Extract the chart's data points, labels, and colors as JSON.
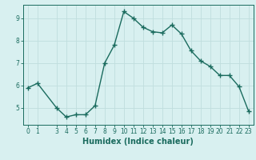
{
  "x": [
    0,
    1,
    3,
    4,
    5,
    6,
    7,
    8,
    9,
    10,
    11,
    12,
    13,
    14,
    15,
    16,
    17,
    18,
    19,
    20,
    21,
    22,
    23
  ],
  "y": [
    5.9,
    6.1,
    5.0,
    4.6,
    4.7,
    4.7,
    5.1,
    7.0,
    7.8,
    9.3,
    9.0,
    8.6,
    8.4,
    8.35,
    8.7,
    8.3,
    7.55,
    7.1,
    6.85,
    6.45,
    6.45,
    5.95,
    4.85
  ],
  "line_color": "#1a6b5e",
  "bg_color": "#d8f0f0",
  "grid_color": "#c0dede",
  "xlabel": "Humidex (Indice chaleur)",
  "xlim": [
    -0.5,
    23.5
  ],
  "ylim": [
    4.25,
    9.6
  ],
  "xtick_positions": [
    0,
    1,
    3,
    4,
    5,
    6,
    7,
    8,
    9,
    10,
    11,
    12,
    13,
    14,
    15,
    16,
    17,
    18,
    19,
    20,
    21,
    22,
    23
  ],
  "xtick_labels": [
    "0",
    "1",
    "3",
    "4",
    "5",
    "6",
    "7",
    "8",
    "9",
    "10",
    "11",
    "12",
    "13",
    "14",
    "15",
    "16",
    "17",
    "18",
    "19",
    "20",
    "21",
    "22",
    "23"
  ],
  "ytick_values": [
    5,
    6,
    7,
    8,
    9
  ],
  "tick_fontsize": 5.5,
  "xlabel_fontsize": 7,
  "marker": "+",
  "marker_size": 4,
  "linewidth": 1.0
}
